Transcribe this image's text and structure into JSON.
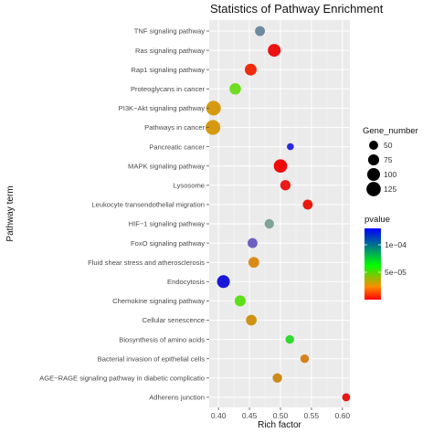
{
  "chart_data": {
    "type": "scatter",
    "title": "Statistics of Pathway Enrichment",
    "xlabel": "Rich factor",
    "ylabel": "Pathway term",
    "xlim": [
      0.385,
      0.612
    ],
    "xticks": [
      "0.40",
      "0.45",
      "0.50",
      "0.55",
      "0.60"
    ],
    "xtick_values": [
      0.4,
      0.45,
      0.5,
      0.55,
      0.6
    ],
    "grid": true,
    "size_legend": {
      "title": "Gene_number",
      "values": [
        50,
        75,
        100,
        125
      ],
      "labels": [
        "50",
        "75",
        "100",
        "125"
      ]
    },
    "color_legend": {
      "title": "pvalue",
      "labels": [
        "1e−04",
        "5e−05"
      ],
      "label_values": [
        0.0001,
        5e-05
      ],
      "range": [
        0,
        0.00013
      ],
      "colors_low_to_high": [
        "#ff0000",
        "#ff8c00",
        "#00ff00",
        "#0000ff"
      ]
    },
    "points": [
      {
        "term": "TNF signaling pathway",
        "rich_factor": 0.467,
        "gene_number": 60,
        "pvalue": 0.00012,
        "color": "#6d8a9e"
      },
      {
        "term": "Ras signaling pathway",
        "rich_factor": 0.49,
        "gene_number": 100,
        "pvalue": 8e-06,
        "color": "#ee1212"
      },
      {
        "term": "Rap1 signaling pathway",
        "rich_factor": 0.452,
        "gene_number": 85,
        "pvalue": 1e-05,
        "color": "#ee2b0c"
      },
      {
        "term": "Proteoglycans in cancer",
        "rich_factor": 0.427,
        "gene_number": 80,
        "pvalue": 6e-05,
        "color": "#6fdd20"
      },
      {
        "term": "PI3K−Akt signaling pathway",
        "rich_factor": 0.392,
        "gene_number": 130,
        "pvalue": 2e-05,
        "color": "#d69a12"
      },
      {
        "term": "Pathways in cancer",
        "rich_factor": 0.391,
        "gene_number": 135,
        "pvalue": 2e-05,
        "color": "#d69a12"
      },
      {
        "term": "Pancreatic cancer",
        "rich_factor": 0.516,
        "gene_number": 30,
        "pvalue": 0.00013,
        "color": "#2a2add"
      },
      {
        "term": "MAPK signaling pathway",
        "rich_factor": 0.5,
        "gene_number": 110,
        "pvalue": 3e-06,
        "color": "#ee0b0b"
      },
      {
        "term": "Lysosome",
        "rich_factor": 0.508,
        "gene_number": 65,
        "pvalue": 5e-06,
        "color": "#ec1a1a"
      },
      {
        "term": "Leukocyte transendothelial migration",
        "rich_factor": 0.544,
        "gene_number": 60,
        "pvalue": 5e-06,
        "color": "#e81a0e"
      },
      {
        "term": "HIF−1 signaling pathway",
        "rich_factor": 0.482,
        "gene_number": 55,
        "pvalue": 9e-05,
        "color": "#7fa49a"
      },
      {
        "term": "FoxO signaling pathway",
        "rich_factor": 0.455,
        "gene_number": 60,
        "pvalue": 0.00011,
        "color": "#6b5fc3"
      },
      {
        "term": "Fluid shear stress and atherosclerosis",
        "rich_factor": 0.457,
        "gene_number": 70,
        "pvalue": 2e-05,
        "color": "#da8a16"
      },
      {
        "term": "Endocytosis",
        "rich_factor": 0.408,
        "gene_number": 100,
        "pvalue": 0.00013,
        "color": "#1818d8"
      },
      {
        "term": "Chemokine signaling pathway",
        "rich_factor": 0.435,
        "gene_number": 75,
        "pvalue": 6e-05,
        "color": "#5ee019"
      },
      {
        "term": "Cellular senescence",
        "rich_factor": 0.453,
        "gene_number": 70,
        "pvalue": 2e-05,
        "color": "#cf9214"
      },
      {
        "term": "Biosynthesis of amino acids",
        "rich_factor": 0.515,
        "gene_number": 45,
        "pvalue": 6e-05,
        "color": "#33d92f"
      },
      {
        "term": "Bacterial invasion of epithelial cells",
        "rich_factor": 0.539,
        "gene_number": 45,
        "pvalue": 2e-05,
        "color": "#d6821c"
      },
      {
        "term": "AGE−RAGE signaling pathway in diabetic complicatio",
        "rich_factor": 0.495,
        "gene_number": 55,
        "pvalue": 2e-05,
        "color": "#cc8a1a"
      },
      {
        "term": "Adherens junction",
        "rich_factor": 0.606,
        "gene_number": 40,
        "pvalue": 5e-06,
        "color": "#e51a14"
      }
    ]
  }
}
